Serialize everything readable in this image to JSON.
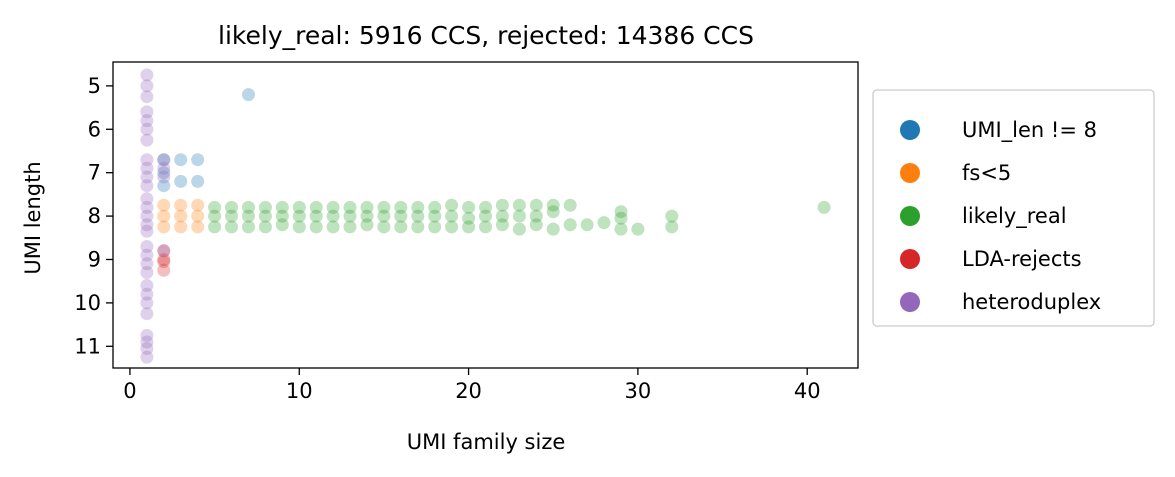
{
  "chart_data": {
    "type": "scatter",
    "title": "likely_real: 5916 CCS, rejected: 14386 CCS",
    "xlabel": "UMI family size",
    "ylabel": "UMI length",
    "xlim": [
      -1,
      43
    ],
    "ylim": [
      11.5,
      4.45
    ],
    "y_inverted": true,
    "xticks": [
      0,
      10,
      20,
      30,
      40
    ],
    "yticks": [
      5,
      6,
      7,
      8,
      9,
      10,
      11
    ],
    "grid": false,
    "legend_position": "outside-right",
    "jitter": "approximately ±0.3 in UMI length",
    "series": [
      {
        "name": "UMI_len != 8",
        "color": "#1f77b4",
        "points": [
          [
            7,
            5.2
          ],
          [
            2,
            6.7
          ],
          [
            3,
            6.7
          ],
          [
            4,
            6.7
          ],
          [
            2,
            7.0
          ],
          [
            3,
            7.2
          ],
          [
            4,
            7.2
          ],
          [
            2,
            7.3
          ]
        ]
      },
      {
        "name": "fs<5",
        "color": "#ff7f0e",
        "points": [
          [
            2,
            7.75
          ],
          [
            2,
            8.0
          ],
          [
            2,
            8.25
          ],
          [
            3,
            7.75
          ],
          [
            3,
            8.0
          ],
          [
            3,
            8.25
          ],
          [
            4,
            7.75
          ],
          [
            4,
            8.0
          ],
          [
            4,
            8.25
          ]
        ]
      },
      {
        "name": "likely_real",
        "color": "#2ca02c",
        "points": [
          [
            5,
            7.8
          ],
          [
            5,
            8.0
          ],
          [
            5,
            8.25
          ],
          [
            6,
            7.8
          ],
          [
            6,
            8.0
          ],
          [
            6,
            8.25
          ],
          [
            7,
            7.8
          ],
          [
            7,
            8.0
          ],
          [
            7,
            8.25
          ],
          [
            8,
            7.8
          ],
          [
            8,
            8.0
          ],
          [
            8,
            8.25
          ],
          [
            9,
            7.8
          ],
          [
            9,
            8.0
          ],
          [
            9,
            8.2
          ],
          [
            10,
            7.8
          ],
          [
            10,
            8.0
          ],
          [
            10,
            8.25
          ],
          [
            11,
            7.8
          ],
          [
            11,
            8.0
          ],
          [
            11,
            8.25
          ],
          [
            12,
            7.8
          ],
          [
            12,
            8.0
          ],
          [
            12,
            8.25
          ],
          [
            13,
            7.8
          ],
          [
            13,
            8.0
          ],
          [
            13,
            8.25
          ],
          [
            14,
            7.8
          ],
          [
            14,
            8.0
          ],
          [
            14,
            8.2
          ],
          [
            15,
            7.8
          ],
          [
            15,
            8.0
          ],
          [
            15,
            8.25
          ],
          [
            16,
            7.8
          ],
          [
            16,
            8.0
          ],
          [
            16,
            8.25
          ],
          [
            17,
            7.8
          ],
          [
            17,
            8.0
          ],
          [
            17,
            8.25
          ],
          [
            18,
            7.8
          ],
          [
            18,
            8.0
          ],
          [
            18,
            8.25
          ],
          [
            19,
            7.75
          ],
          [
            19,
            8.0
          ],
          [
            19,
            8.25
          ],
          [
            20,
            7.8
          ],
          [
            20,
            8.05
          ],
          [
            20,
            8.25
          ],
          [
            21,
            7.8
          ],
          [
            21,
            8.0
          ],
          [
            21,
            8.25
          ],
          [
            22,
            7.75
          ],
          [
            22,
            8.0
          ],
          [
            22,
            8.2
          ],
          [
            23,
            7.75
          ],
          [
            23,
            8.0
          ],
          [
            23,
            8.3
          ],
          [
            24,
            7.75
          ],
          [
            24,
            8.0
          ],
          [
            24,
            8.2
          ],
          [
            25,
            7.75
          ],
          [
            25,
            7.9
          ],
          [
            25,
            8.3
          ],
          [
            26,
            7.75
          ],
          [
            26,
            8.2
          ],
          [
            27,
            8.2
          ],
          [
            28,
            8.15
          ],
          [
            29,
            7.9
          ],
          [
            29,
            8.05
          ],
          [
            29,
            8.3
          ],
          [
            30,
            8.3
          ],
          [
            32,
            8.0
          ],
          [
            32,
            8.25
          ],
          [
            41,
            7.8
          ]
        ]
      },
      {
        "name": "LDA-rejects",
        "color": "#d62728",
        "points": [
          [
            2,
            8.8
          ],
          [
            2,
            9.0
          ],
          [
            2,
            9.05
          ],
          [
            2,
            9.25
          ]
        ]
      },
      {
        "name": "heteroduplex",
        "color": "#9467bd",
        "points": [
          [
            1,
            4.75
          ],
          [
            1,
            5.0
          ],
          [
            1,
            5.25
          ],
          [
            1,
            5.6
          ],
          [
            1,
            5.8
          ],
          [
            1,
            6.0
          ],
          [
            1,
            6.25
          ],
          [
            1,
            6.7
          ],
          [
            1,
            6.9
          ],
          [
            1,
            7.1
          ],
          [
            1,
            7.3
          ],
          [
            1,
            7.6
          ],
          [
            1,
            7.8
          ],
          [
            1,
            8.0
          ],
          [
            1,
            8.2
          ],
          [
            1,
            8.35
          ],
          [
            1,
            8.7
          ],
          [
            1,
            8.9
          ],
          [
            1,
            9.1
          ],
          [
            1,
            9.3
          ],
          [
            1,
            9.6
          ],
          [
            1,
            9.8
          ],
          [
            1,
            10.0
          ],
          [
            1,
            10.25
          ],
          [
            1,
            10.75
          ],
          [
            1,
            10.9
          ],
          [
            1,
            11.05
          ],
          [
            1,
            11.25
          ],
          [
            2,
            6.7
          ],
          [
            2,
            6.9
          ],
          [
            2,
            7.1
          ],
          [
            2,
            8.8
          ]
        ]
      }
    ]
  }
}
